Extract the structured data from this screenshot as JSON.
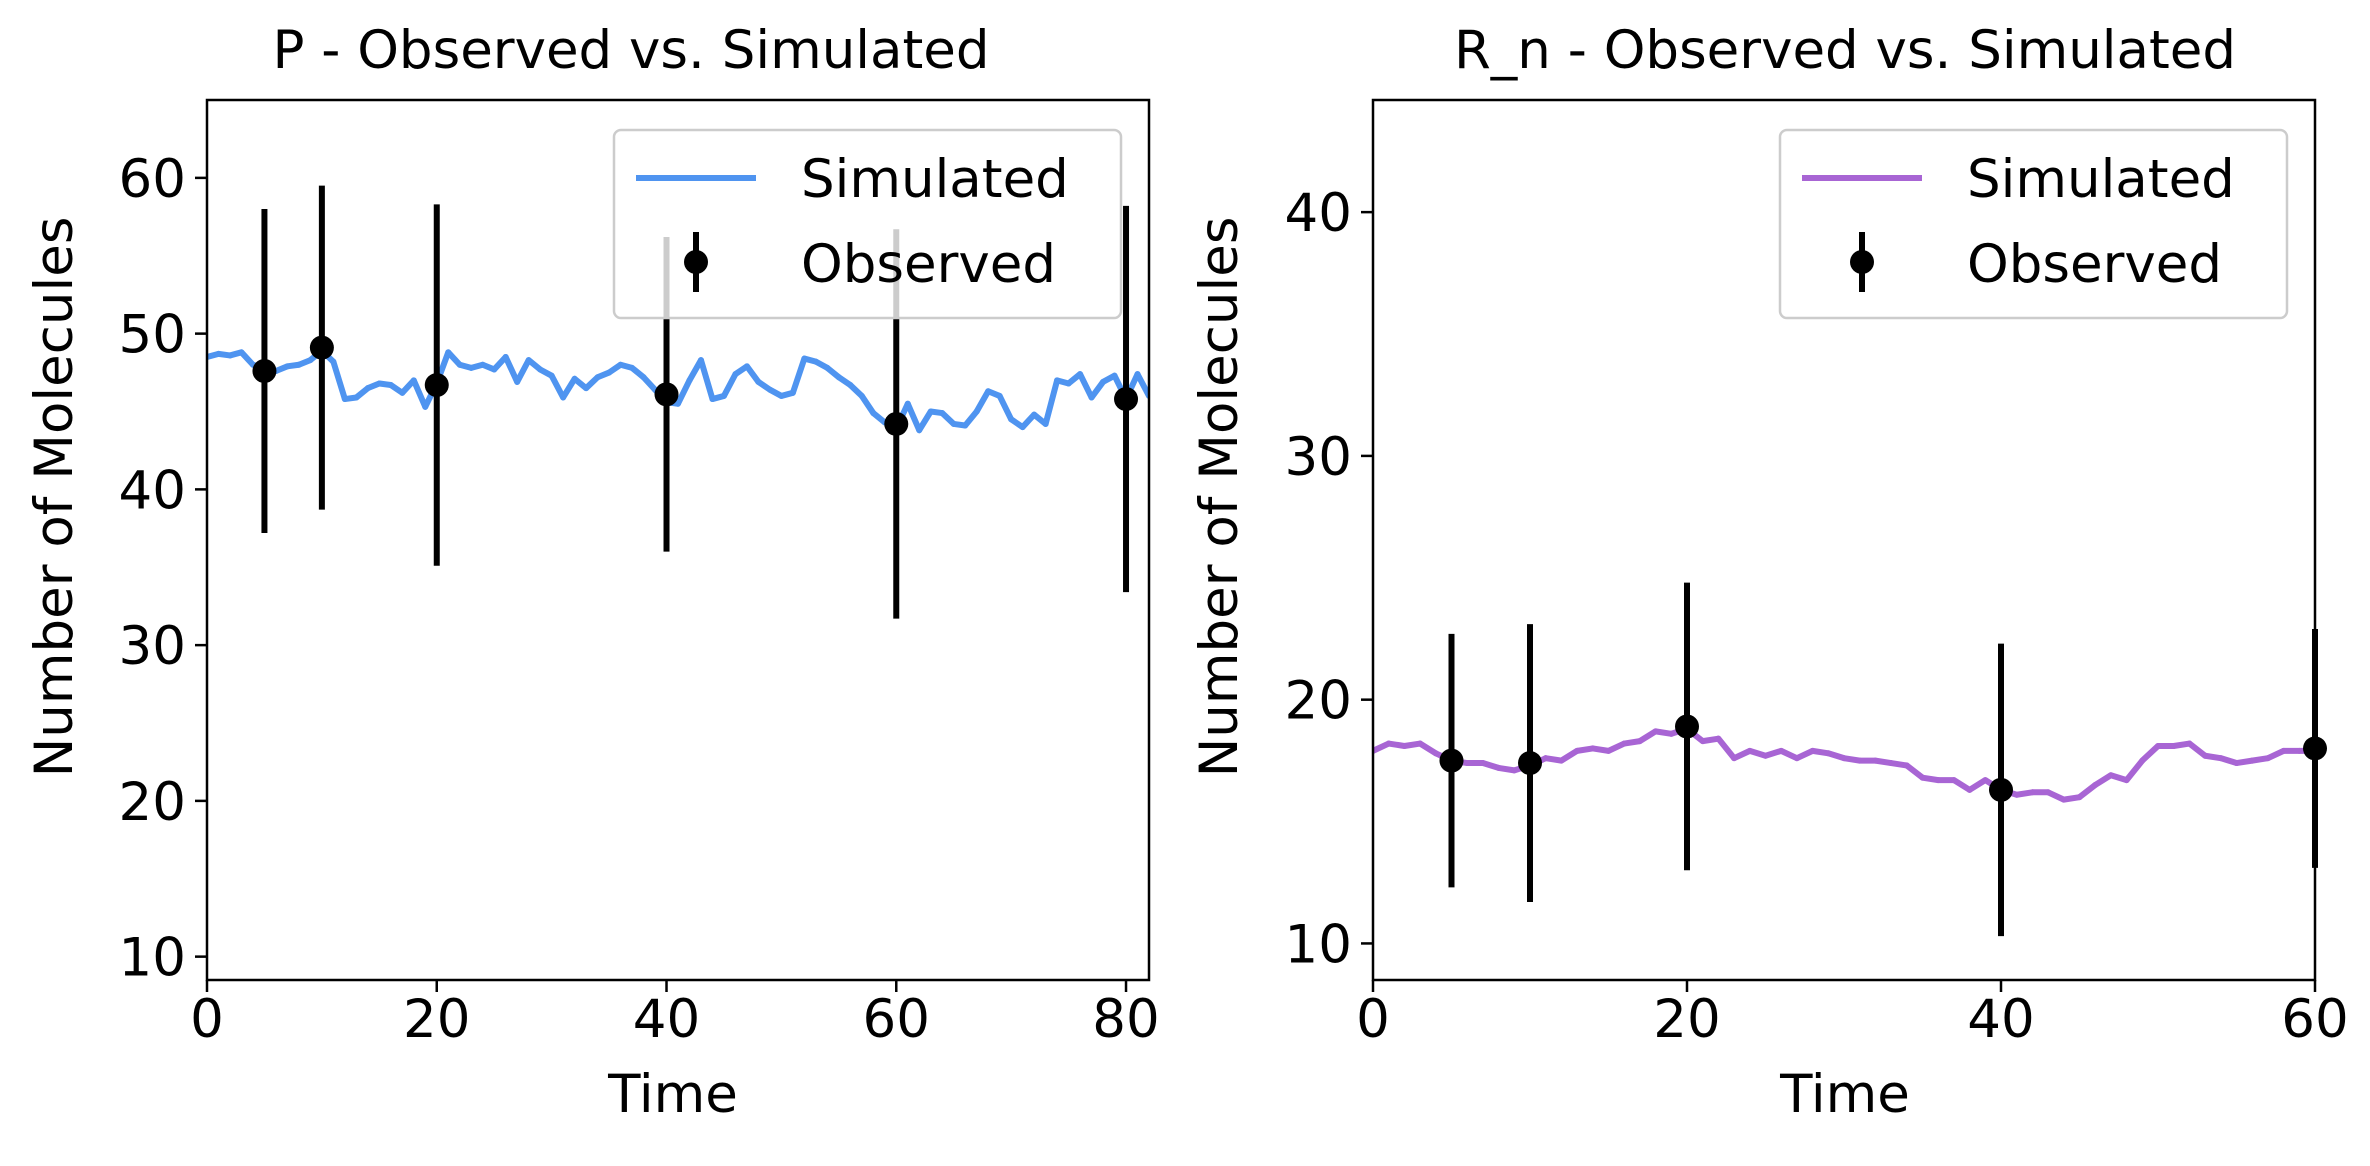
{
  "chart_data": [
    {
      "type": "line",
      "title": "P - Observed vs. Simulated",
      "xlabel": "Time",
      "ylabel": "Number of Molecules",
      "xlim": [
        0,
        82
      ],
      "ylim": [
        8.5,
        65
      ],
      "xticks": [
        0,
        20,
        40,
        60,
        80
      ],
      "yticks": [
        10,
        20,
        30,
        40,
        50,
        60
      ],
      "grid": false,
      "legend_position": "top-right",
      "series": [
        {
          "name": "Simulated",
          "kind": "line",
          "color": "#4f94f0",
          "x": [
            0,
            1,
            2,
            3,
            4,
            5,
            6,
            7,
            8,
            9,
            10,
            11,
            12,
            13,
            14,
            15,
            16,
            17,
            18,
            19,
            20,
            21,
            22,
            23,
            24,
            25,
            26,
            27,
            28,
            29,
            30,
            31,
            32,
            33,
            34,
            35,
            36,
            37,
            38,
            39,
            40,
            41,
            42,
            43,
            44,
            45,
            46,
            47,
            48,
            49,
            50,
            51,
            52,
            53,
            54,
            55,
            56,
            57,
            58,
            59,
            60,
            61,
            62,
            63,
            64,
            65,
            66,
            67,
            68,
            69,
            70,
            71,
            72,
            73,
            74,
            75,
            76,
            77,
            78,
            79,
            80,
            81,
            82
          ],
          "y": [
            48.5,
            48.7,
            48.6,
            48.8,
            48.0,
            47.8,
            47.6,
            47.9,
            48.0,
            48.3,
            48.9,
            48.2,
            45.8,
            45.9,
            46.5,
            46.8,
            46.7,
            46.2,
            47.0,
            45.3,
            46.8,
            48.8,
            48.0,
            47.8,
            48.0,
            47.7,
            48.5,
            46.9,
            48.3,
            47.7,
            47.3,
            45.9,
            47.1,
            46.5,
            47.2,
            47.5,
            48.0,
            47.8,
            47.2,
            46.4,
            45.6,
            45.5,
            47.0,
            48.3,
            45.8,
            46.0,
            47.4,
            47.9,
            46.9,
            46.4,
            46.0,
            46.2,
            48.4,
            48.2,
            47.8,
            47.2,
            46.7,
            46.0,
            44.9,
            44.3,
            43.9,
            45.5,
            43.8,
            45.0,
            44.9,
            44.2,
            44.1,
            45.0,
            46.3,
            46.0,
            44.5,
            44.0,
            44.8,
            44.2,
            47.0,
            46.8,
            47.4,
            45.9,
            46.9,
            47.3,
            45.8,
            47.4,
            46.0
          ]
        },
        {
          "name": "Observed",
          "kind": "errorbar",
          "color": "#000000",
          "x": [
            5,
            10,
            20,
            40,
            60,
            80
          ],
          "y": [
            47.6,
            49.1,
            46.7,
            46.1,
            44.2,
            45.8
          ],
          "yerr": [
            10.4,
            10.4,
            11.6,
            10.1,
            12.5,
            12.4
          ]
        }
      ]
    },
    {
      "type": "line",
      "title": "R_n - Observed vs. Simulated",
      "xlabel": "Time",
      "ylabel": "Number of Molecules",
      "xlim": [
        0,
        60
      ],
      "ylim": [
        8.5,
        44.6
      ],
      "xticks": [
        0,
        20,
        40,
        60
      ],
      "yticks": [
        10,
        20,
        30,
        40
      ],
      "grid": false,
      "legend_position": "top-right",
      "series": [
        {
          "name": "Simulated",
          "kind": "line",
          "color": "#a865d4",
          "x": [
            0,
            1,
            2,
            3,
            4,
            5,
            6,
            7,
            8,
            9,
            10,
            11,
            12,
            13,
            14,
            15,
            16,
            17,
            18,
            19,
            20,
            21,
            22,
            23,
            24,
            25,
            26,
            27,
            28,
            29,
            30,
            31,
            32,
            33,
            34,
            35,
            36,
            37,
            38,
            39,
            40,
            41,
            42,
            43,
            44,
            45,
            46,
            47,
            48,
            49,
            50,
            51,
            52,
            53,
            54,
            55,
            56,
            57,
            58,
            59,
            60
          ],
          "y": [
            17.9,
            18.2,
            18.1,
            18.2,
            17.8,
            17.5,
            17.4,
            17.4,
            17.2,
            17.1,
            17.3,
            17.6,
            17.5,
            17.9,
            18.0,
            17.9,
            18.2,
            18.3,
            18.7,
            18.6,
            18.8,
            18.3,
            18.4,
            17.6,
            17.9,
            17.7,
            17.9,
            17.6,
            17.9,
            17.8,
            17.6,
            17.5,
            17.5,
            17.4,
            17.3,
            16.8,
            16.7,
            16.7,
            16.3,
            16.7,
            16.3,
            16.1,
            16.2,
            16.2,
            15.9,
            16.0,
            16.5,
            16.9,
            16.7,
            17.5,
            18.1,
            18.1,
            18.2,
            17.7,
            17.6,
            17.4,
            17.5,
            17.6,
            17.9,
            17.9,
            17.9
          ]
        },
        {
          "name": "Observed",
          "kind": "errorbar",
          "color": "#000000",
          "x": [
            5,
            10,
            20,
            40,
            60
          ],
          "y": [
            17.5,
            17.4,
            18.9,
            16.3,
            18.0
          ],
          "yerr": [
            5.2,
            5.7,
            5.9,
            6.0,
            4.9
          ]
        }
      ]
    }
  ]
}
